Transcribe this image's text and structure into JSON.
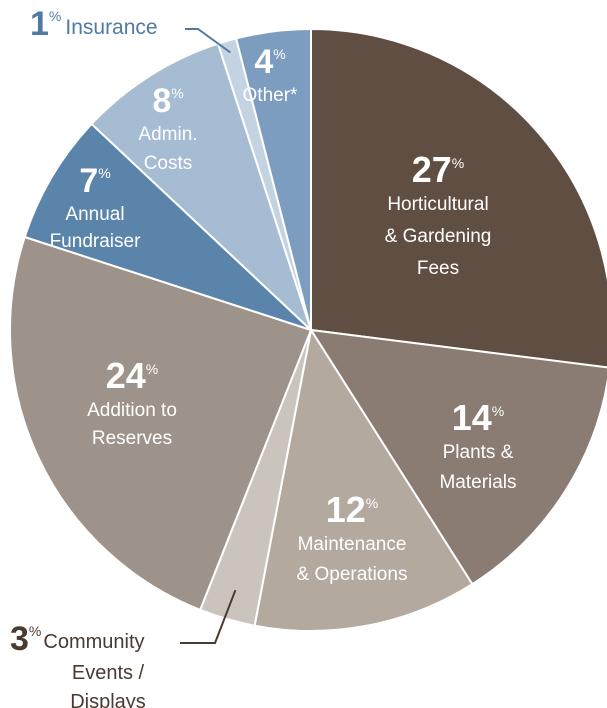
{
  "chart_data": {
    "type": "pie",
    "title": "",
    "slices": [
      {
        "value": 27,
        "label": [
          "Horticultural",
          "& Gardening",
          "Fees"
        ],
        "color": "#614e42",
        "text_color": "#ffffff"
      },
      {
        "value": 14,
        "label": [
          "Plants &",
          "Materials"
        ],
        "color": "#8a7c72",
        "text_color": "#ffffff"
      },
      {
        "value": 12,
        "label": [
          "Maintenance",
          "& Operations"
        ],
        "color": "#b3a99f",
        "text_color": "#ffffff"
      },
      {
        "value": 3,
        "label": [
          "Community",
          "Events /",
          "Displays"
        ],
        "color": "#cbc4bd",
        "text_color": "#4a3a30"
      },
      {
        "value": 24,
        "label": [
          "Addition to",
          "Reserves"
        ],
        "color": "#9e938a",
        "text_color": "#ffffff"
      },
      {
        "value": 7,
        "label": [
          "Annual",
          "Fundraiser"
        ],
        "color": "#5b84ab",
        "text_color": "#ffffff"
      },
      {
        "value": 8,
        "label": [
          "Admin.",
          "Costs"
        ],
        "color": "#a6bcd2",
        "text_color": "#ffffff"
      },
      {
        "value": 1,
        "label": [
          "Insurance"
        ],
        "color": "#c4d3e1",
        "text_color": "#4e7aa5"
      },
      {
        "value": 4,
        "label": [
          "Other*"
        ],
        "color": "#7c9dc0",
        "text_color": "#ffffff"
      }
    ],
    "percent_symbol": "%"
  }
}
